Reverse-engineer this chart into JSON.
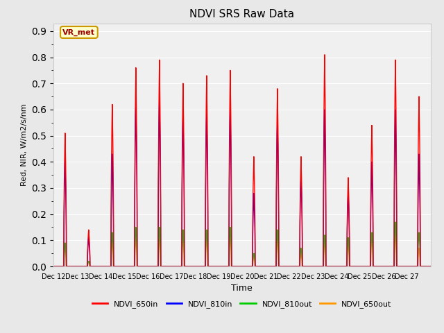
{
  "title": "NDVI SRS Raw Data",
  "ylabel": "Red, NIR, W/m2/s/nm",
  "xlabel": "Time",
  "ylim": [
    0.0,
    0.93
  ],
  "yticks": [
    0.0,
    0.1,
    0.2,
    0.3,
    0.4,
    0.5,
    0.6,
    0.7,
    0.8,
    0.9
  ],
  "annotation_text": "VR_met",
  "annotation_bg": "#ffffcc",
  "annotation_border": "#cc9900",
  "annotation_text_color": "#990000",
  "colors": {
    "NDVI_650in": "#ff0000",
    "NDVI_810in": "#0000ff",
    "NDVI_810out": "#00cc00",
    "NDVI_650out": "#ff9900"
  },
  "fig_bg": "#e8e8e8",
  "plot_bg": "#f0f0f0",
  "days": [
    12,
    13,
    14,
    15,
    16,
    17,
    18,
    19,
    20,
    21,
    22,
    23,
    24,
    25,
    26,
    27
  ],
  "xtick_labels": [
    "Dec 12",
    "Dec 13",
    "Dec 14",
    "Dec 15",
    "Dec 16",
    "Dec 17",
    "Dec 18",
    "Dec 19",
    "Dec 20",
    "Dec 21",
    "Dec 22",
    "Dec 23",
    "Dec 24",
    "Dec 25",
    "Dec 26",
    "Dec 27"
  ],
  "peaks_650in": [
    0.51,
    0.14,
    0.62,
    0.76,
    0.79,
    0.7,
    0.73,
    0.75,
    0.42,
    0.68,
    0.42,
    0.81,
    0.34,
    0.54,
    0.79,
    0.65
  ],
  "peaks_810in": [
    0.41,
    0.11,
    0.43,
    0.64,
    0.65,
    0.6,
    0.6,
    0.61,
    0.28,
    0.57,
    0.35,
    0.6,
    0.29,
    0.4,
    0.6,
    0.43
  ],
  "peaks_810out": [
    0.09,
    0.02,
    0.13,
    0.15,
    0.15,
    0.14,
    0.14,
    0.15,
    0.05,
    0.14,
    0.07,
    0.12,
    0.11,
    0.13,
    0.17,
    0.13
  ],
  "peaks_650out": [
    0.08,
    0.02,
    0.1,
    0.11,
    0.11,
    0.11,
    0.11,
    0.12,
    0.04,
    0.11,
    0.05,
    0.1,
    0.09,
    0.11,
    0.13,
    0.07
  ]
}
